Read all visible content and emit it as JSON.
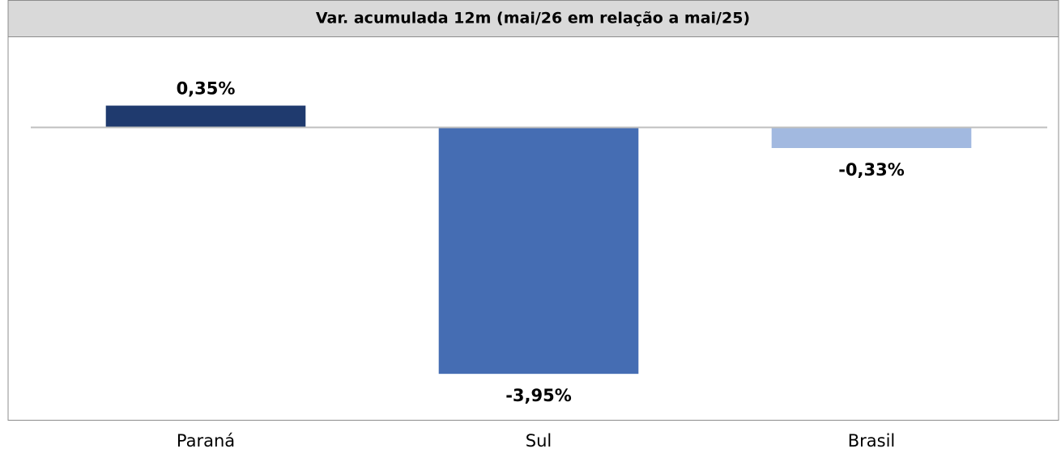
{
  "chart_data": {
    "type": "bar",
    "title": "Var. acumulada 12m (mai/26 em relação a mai/25)",
    "categories": [
      "Paraná",
      "Sul",
      "Brasil"
    ],
    "values": [
      0.35,
      -3.95,
      -0.33
    ],
    "value_labels": [
      "0,35%",
      "-3,95%",
      "-0,33%"
    ],
    "colors": [
      "#1f3a6e",
      "#456db3",
      "#a2b9e0"
    ],
    "ylim": [
      -4.7,
      1.2
    ]
  }
}
